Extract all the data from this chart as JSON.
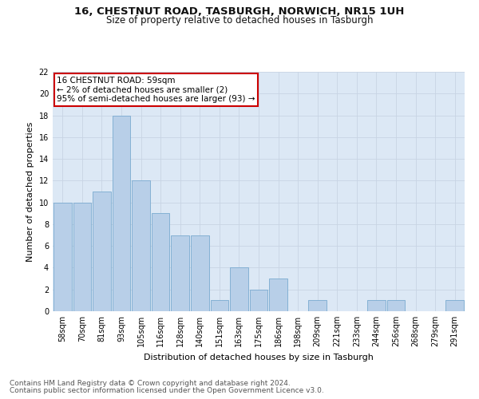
{
  "title": "16, CHESTNUT ROAD, TASBURGH, NORWICH, NR15 1UH",
  "subtitle": "Size of property relative to detached houses in Tasburgh",
  "xlabel": "Distribution of detached houses by size in Tasburgh",
  "ylabel": "Number of detached properties",
  "footnote1": "Contains HM Land Registry data © Crown copyright and database right 2024.",
  "footnote2": "Contains public sector information licensed under the Open Government Licence v3.0.",
  "annotation_line1": "16 CHESTNUT ROAD: 59sqm",
  "annotation_line2": "← 2% of detached houses are smaller (2)",
  "annotation_line3": "95% of semi-detached houses are larger (93) →",
  "categories": [
    "58sqm",
    "70sqm",
    "81sqm",
    "93sqm",
    "105sqm",
    "116sqm",
    "128sqm",
    "140sqm",
    "151sqm",
    "163sqm",
    "175sqm",
    "186sqm",
    "198sqm",
    "209sqm",
    "221sqm",
    "233sqm",
    "244sqm",
    "256sqm",
    "268sqm",
    "279sqm",
    "291sqm"
  ],
  "values": [
    10,
    10,
    11,
    18,
    12,
    9,
    7,
    7,
    1,
    4,
    2,
    3,
    0,
    1,
    0,
    0,
    1,
    1,
    0,
    0,
    1
  ],
  "bar_color": "#b8cfe8",
  "bar_edge_color": "#7aaad0",
  "annotation_box_color": "#ffffff",
  "annotation_box_edge": "#cc0000",
  "ylim": [
    0,
    22
  ],
  "yticks": [
    0,
    2,
    4,
    6,
    8,
    10,
    12,
    14,
    16,
    18,
    20,
    22
  ],
  "grid_color": "#c8d4e4",
  "bg_color": "#dce8f5",
  "fig_bg_color": "#ffffff",
  "title_fontsize": 9.5,
  "subtitle_fontsize": 8.5,
  "axis_label_fontsize": 8,
  "tick_fontsize": 7,
  "annotation_fontsize": 7.5,
  "footnote_fontsize": 6.5
}
